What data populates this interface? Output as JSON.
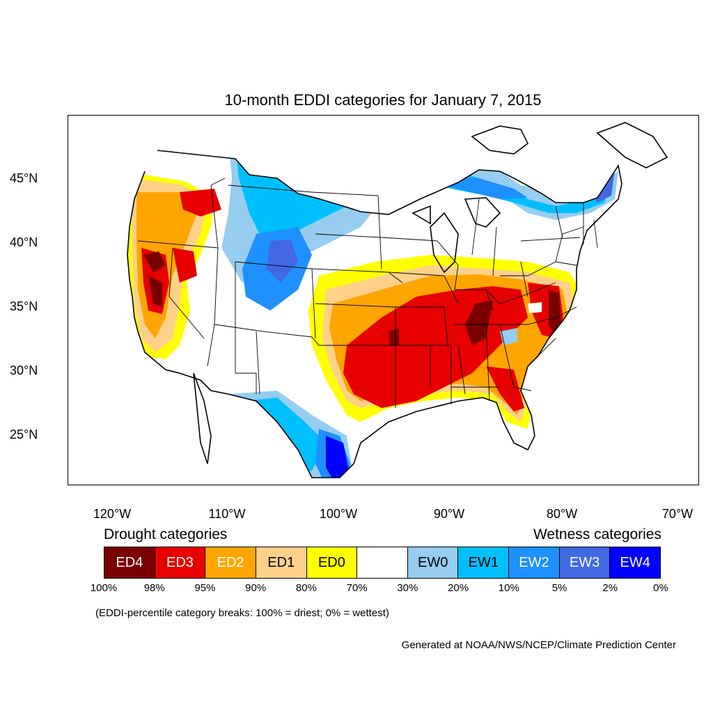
{
  "title": "10-month EDDI categories for January 7, 2015",
  "map": {
    "latitude_labels": [
      "45°N",
      "40°N",
      "35°N",
      "30°N",
      "25°N"
    ],
    "longitude_labels": [
      "120°W",
      "110°W",
      "100°W",
      "90°W",
      "80°W",
      "70°W"
    ],
    "highest_intensity_regions": [
      "California Central Valley",
      "Southern Oregon / Idaho",
      "Ozarks / Tennessee Valley",
      "Virginia / Mid-Atlantic"
    ],
    "wettest_regions": [
      "Montana / North Dakota border",
      "Northern Plains",
      "South Texas coast",
      "Northern New England / Great Lakes"
    ]
  },
  "legend": {
    "drought_heading": "Drought categories",
    "wetness_heading": "Wetness categories",
    "categories": [
      {
        "label": "ED4",
        "color": "#7a0000",
        "text_color": "#ffffff"
      },
      {
        "label": "ED3",
        "color": "#e60000",
        "text_color": "#ffffff"
      },
      {
        "label": "ED2",
        "color": "#ffa500",
        "text_color": "#ffffff"
      },
      {
        "label": "ED1",
        "color": "#fdd18a",
        "text_color": "#000000"
      },
      {
        "label": "ED0",
        "color": "#ffff00",
        "text_color": "#000000"
      },
      {
        "label": "",
        "color": "#ffffff",
        "text_color": "#000000"
      },
      {
        "label": "EW0",
        "color": "#96cdf0",
        "text_color": "#000000"
      },
      {
        "label": "EW1",
        "color": "#00bfff",
        "text_color": "#000000"
      },
      {
        "label": "EW2",
        "color": "#1e90ff",
        "text_color": "#ffffff"
      },
      {
        "label": "EW3",
        "color": "#4169e1",
        "text_color": "#ffffff"
      },
      {
        "label": "EW4",
        "color": "#0000ff",
        "text_color": "#ffffff"
      }
    ],
    "breaks": [
      "100%",
      "98%",
      "95%",
      "90%",
      "80%",
      "70%",
      "30%",
      "20%",
      "10%",
      "5%",
      "2%",
      "0%"
    ],
    "note": "(EDDI-percentile category breaks: 100% = driest; 0% = wettest)"
  },
  "credit": "Generated at NOAA/NWS/NCEP/Climate Prediction Center"
}
